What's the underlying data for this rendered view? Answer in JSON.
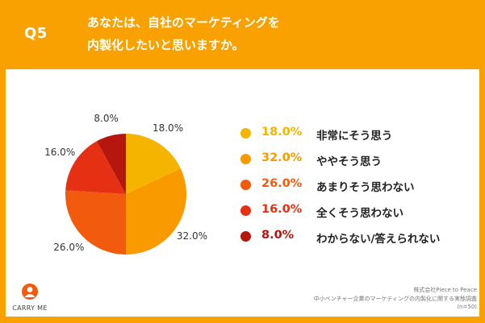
{
  "header": {
    "qnum": "Q5",
    "question_line1": "あなたは、自社のマーケティングを",
    "question_line2": "内製化したいと思いますか。"
  },
  "colors": {
    "background": "#F8A100",
    "slices": [
      "#F5B400",
      "#F89A00",
      "#F25A0D",
      "#E53013",
      "#B5160E"
    ]
  },
  "chart_data": {
    "type": "pie",
    "categories": [
      "非常にそう思う",
      "ややそう思う",
      "あまりそう思わない",
      "全くそう思わない",
      "わからない/答えられない"
    ],
    "values": [
      18.0,
      32.0,
      26.0,
      16.0,
      8.0
    ],
    "value_labels": [
      "18.0%",
      "32.0%",
      "26.0%",
      "16.0%",
      "8.0%"
    ],
    "legend_placement": "right"
  },
  "footer": {
    "brand": "CARRY ME",
    "source_line1": "株式会社Piece to Peace",
    "source_line2": "中小ベンチャー企業のマーケティングの内製化に関する実態調査",
    "source_line3": "(n=50)"
  }
}
